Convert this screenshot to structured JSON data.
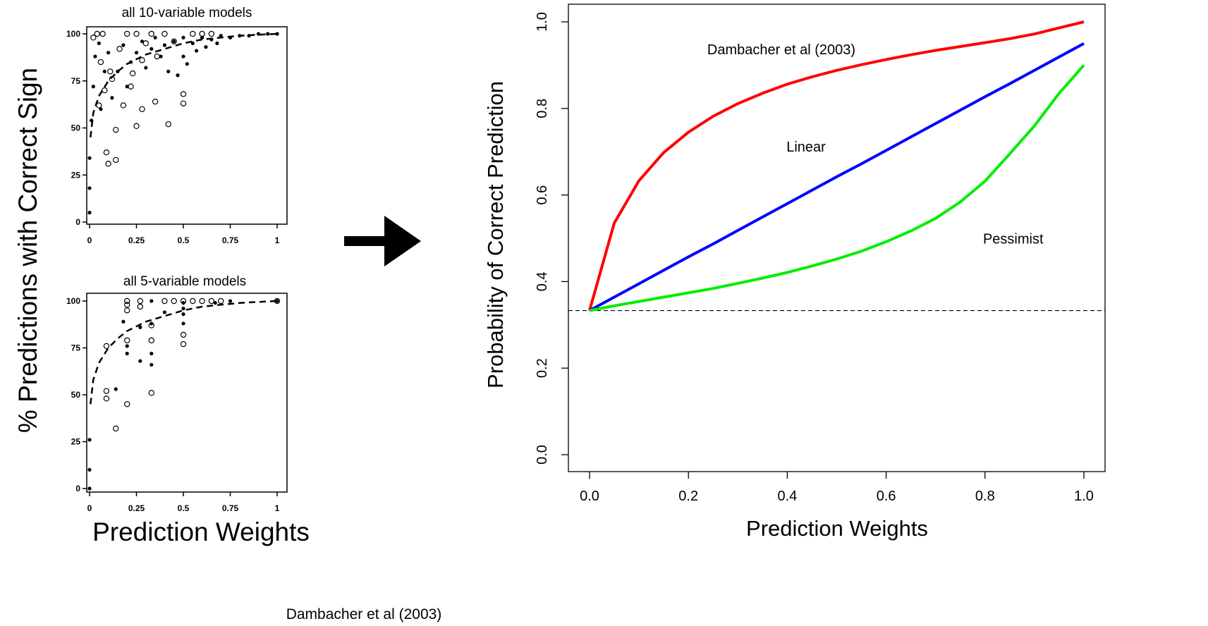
{
  "figure": {
    "left_ylabel": "% Predictions with Correct Sign",
    "left_xlabel": "Prediction Weights",
    "citation": "Dambacher et al (2003)",
    "arrow_color": "#000000"
  },
  "chart_data": [
    {
      "type": "scatter",
      "title": "all 10-variable models",
      "xlabel": "",
      "ylabel": "",
      "xlim": [
        0,
        1
      ],
      "ylim": [
        0,
        100
      ],
      "x_ticks": [
        "0",
        "0.25",
        "0.5",
        "0.75",
        "1"
      ],
      "y_ticks": [
        "0",
        "25",
        "50",
        "75",
        "100"
      ],
      "grid": false,
      "series": [
        {
          "marker": "open-circle",
          "points": [
            [
              0.02,
              98
            ],
            [
              0.04,
              100
            ],
            [
              0.06,
              85
            ],
            [
              0.08,
              70
            ],
            [
              0.09,
              37
            ],
            [
              0.1,
              31
            ],
            [
              0.12,
              76
            ],
            [
              0.14,
              33
            ],
            [
              0.14,
              49
            ],
            [
              0.18,
              62
            ],
            [
              0.2,
              100
            ],
            [
              0.22,
              72
            ],
            [
              0.25,
              100
            ],
            [
              0.25,
              51
            ],
            [
              0.28,
              60
            ],
            [
              0.3,
              95
            ],
            [
              0.33,
              100
            ],
            [
              0.35,
              64
            ],
            [
              0.4,
              100
            ],
            [
              0.42,
              52
            ],
            [
              0.5,
              63
            ],
            [
              0.5,
              68
            ],
            [
              0.55,
              100
            ],
            [
              0.6,
              100
            ],
            [
              0.65,
              100
            ],
            [
              0.07,
              100
            ],
            [
              0.16,
              92
            ],
            [
              0.28,
              86
            ],
            [
              0.36,
              88
            ],
            [
              0.45,
              96
            ],
            [
              0.05,
              62
            ],
            [
              0.11,
              80
            ],
            [
              0.23,
              79
            ]
          ]
        },
        {
          "marker": "filled-dot",
          "points": [
            [
              0,
              5
            ],
            [
              0,
              18
            ],
            [
              0,
              34
            ],
            [
              0.01,
              54
            ],
            [
              0.02,
              72
            ],
            [
              0.03,
              88
            ],
            [
              0.05,
              95
            ],
            [
              0.06,
              60
            ],
            [
              0.08,
              80
            ],
            [
              0.1,
              90
            ],
            [
              0.12,
              66
            ],
            [
              0.15,
              80
            ],
            [
              0.18,
              94
            ],
            [
              0.2,
              72
            ],
            [
              0.22,
              85
            ],
            [
              0.25,
              90
            ],
            [
              0.28,
              96
            ],
            [
              0.3,
              82
            ],
            [
              0.33,
              92
            ],
            [
              0.35,
              98
            ],
            [
              0.38,
              88
            ],
            [
              0.4,
              94
            ],
            [
              0.45,
              96
            ],
            [
              0.5,
              98
            ],
            [
              0.5,
              88
            ],
            [
              0.55,
              95
            ],
            [
              0.6,
              98
            ],
            [
              0.65,
              97
            ],
            [
              0.7,
              99
            ],
            [
              0.75,
              98
            ],
            [
              0.8,
              99
            ],
            [
              0.85,
              99
            ],
            [
              0.9,
              100
            ],
            [
              0.95,
              100
            ],
            [
              1,
              100
            ],
            [
              0.42,
              80
            ],
            [
              0.47,
              78
            ],
            [
              0.52,
              84
            ],
            [
              0.57,
              91
            ],
            [
              0.62,
              93
            ],
            [
              0.68,
              95
            ]
          ]
        }
      ],
      "fit_line": {
        "style": "dashed",
        "x": [
          0.005,
          0.02,
          0.05,
          0.1,
          0.15,
          0.2,
          0.3,
          0.4,
          0.5,
          0.6,
          0.7,
          0.8,
          0.9,
          1
        ],
        "y": [
          45,
          58,
          67,
          75,
          80,
          84,
          89,
          92,
          95,
          97,
          98,
          99,
          99.5,
          100
        ]
      }
    },
    {
      "type": "scatter",
      "title": "all 5-variable models",
      "xlabel": "",
      "ylabel": "",
      "xlim": [
        0,
        1
      ],
      "ylim": [
        0,
        100
      ],
      "x_ticks": [
        "0",
        "0.25",
        "0.5",
        "0.75",
        "1"
      ],
      "y_ticks": [
        "0",
        "25",
        "50",
        "75",
        "100"
      ],
      "grid": false,
      "series": [
        {
          "marker": "open-circle",
          "points": [
            [
              0.09,
              76
            ],
            [
              0.09,
              52
            ],
            [
              0.09,
              48
            ],
            [
              0.14,
              32
            ],
            [
              0.2,
              100
            ],
            [
              0.2,
              98
            ],
            [
              0.2,
              95
            ],
            [
              0.2,
              45
            ],
            [
              0.2,
              79
            ],
            [
              0.27,
              100
            ],
            [
              0.27,
              97
            ],
            [
              0.33,
              79
            ],
            [
              0.33,
              87
            ],
            [
              0.33,
              51
            ],
            [
              0.4,
              100
            ],
            [
              0.45,
              100
            ],
            [
              0.5,
              82
            ],
            [
              0.5,
              77
            ],
            [
              0.5,
              100
            ],
            [
              0.55,
              100
            ],
            [
              0.6,
              100
            ],
            [
              0.65,
              100
            ],
            [
              0.7,
              100
            ],
            [
              1,
              100
            ]
          ]
        },
        {
          "marker": "filled-dot",
          "points": [
            [
              0,
              0
            ],
            [
              0,
              10
            ],
            [
              0,
              26
            ],
            [
              0.14,
              53
            ],
            [
              0.18,
              89
            ],
            [
              0.2,
              76
            ],
            [
              0.2,
              72
            ],
            [
              0.27,
              68
            ],
            [
              0.27,
              86
            ],
            [
              0.33,
              100
            ],
            [
              0.33,
              88
            ],
            [
              0.33,
              72
            ],
            [
              0.33,
              66
            ],
            [
              0.4,
              94
            ],
            [
              0.5,
              93
            ],
            [
              0.5,
              88
            ],
            [
              0.5,
              96
            ],
            [
              0.5,
              99
            ],
            [
              0.67,
              99
            ],
            [
              0.75,
              100
            ],
            [
              1,
              100
            ]
          ]
        }
      ],
      "fit_line": {
        "style": "dashed",
        "x": [
          0.005,
          0.02,
          0.05,
          0.1,
          0.15,
          0.2,
          0.3,
          0.4,
          0.5,
          0.6,
          0.7,
          0.8,
          0.9,
          1
        ],
        "y": [
          45,
          58,
          67,
          75,
          80,
          84,
          89,
          92,
          95,
          97,
          98,
          99,
          99.5,
          100
        ]
      }
    },
    {
      "type": "line",
      "title": "",
      "xlabel": "Prediction Weights",
      "ylabel": "Probability of Correct Prediction",
      "xlim": [
        0,
        1
      ],
      "ylim": [
        0,
        1
      ],
      "x_ticks": [
        "0.0",
        "0.2",
        "0.4",
        "0.6",
        "0.8",
        "1.0"
      ],
      "y_ticks": [
        "0.0",
        "0.2",
        "0.4",
        "0.6",
        "0.8",
        "1.0"
      ],
      "grid": false,
      "x": [
        0,
        0.05,
        0.1,
        0.15,
        0.2,
        0.25,
        0.3,
        0.35,
        0.4,
        0.45,
        0.5,
        0.55,
        0.6,
        0.65,
        0.7,
        0.75,
        0.8,
        0.85,
        0.9,
        0.95,
        1
      ],
      "series": [
        {
          "name": "Dambacher et al (2003)",
          "color": "#ff0000",
          "values": [
            0.333,
            0.535,
            0.633,
            0.698,
            0.745,
            0.782,
            0.811,
            0.835,
            0.856,
            0.873,
            0.888,
            0.901,
            0.913,
            0.924,
            0.934,
            0.943,
            0.952,
            0.961,
            0.972,
            0.986,
            1.0
          ]
        },
        {
          "name": "Linear",
          "color": "#0000ff",
          "values": [
            0.333,
            0.364,
            0.395,
            0.426,
            0.457,
            0.487,
            0.518,
            0.549,
            0.58,
            0.611,
            0.642,
            0.672,
            0.703,
            0.734,
            0.765,
            0.796,
            0.827,
            0.857,
            0.888,
            0.919,
            0.95
          ]
        },
        {
          "name": "Pessimist",
          "color": "#00ee00",
          "values": [
            0.333,
            0.344,
            0.354,
            0.364,
            0.374,
            0.384,
            0.396,
            0.408,
            0.421,
            0.436,
            0.452,
            0.47,
            0.492,
            0.517,
            0.546,
            0.584,
            0.632,
            0.695,
            0.76,
            0.835,
            0.9
          ]
        }
      ],
      "reference_line": {
        "y": 0.333,
        "style": "dashed",
        "color": "#000000"
      },
      "labels": [
        {
          "text": "Dambacher et al (2003)",
          "x": 0.388,
          "y": 0.925
        },
        {
          "text": "Linear",
          "x": 0.438,
          "y": 0.7
        },
        {
          "text": "Pessimist",
          "x": 0.857,
          "y": 0.488
        }
      ]
    }
  ]
}
